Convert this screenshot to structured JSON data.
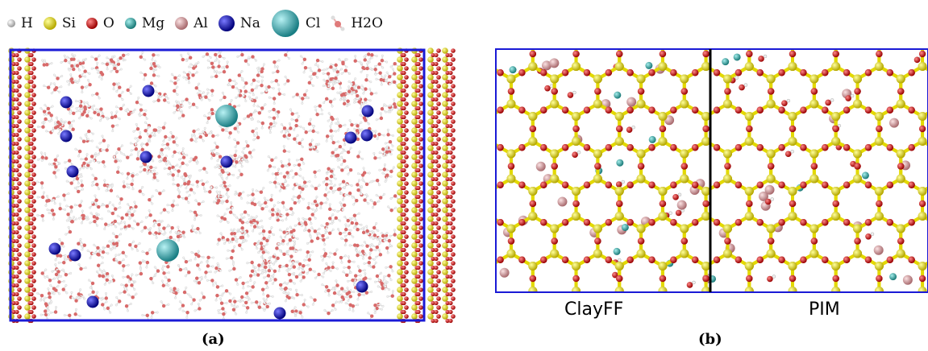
{
  "legend": [
    {
      "label": "H",
      "color": "#e8e8e8",
      "kind": "small-sphere"
    },
    {
      "label": "Si",
      "color": "#f2e400",
      "kind": "sphere"
    },
    {
      "label": "O",
      "color": "#e01515",
      "kind": "sphere"
    },
    {
      "label": "Mg",
      "color": "#33b3b0",
      "kind": "sphere"
    },
    {
      "label": "Al",
      "color": "#dca0a4",
      "kind": "sphere"
    },
    {
      "label": "Na",
      "color": "#1414c8",
      "kind": "large-sphere"
    },
    {
      "label": "Cl",
      "color": "#3ab7bd",
      "kind": "xl-sphere"
    },
    {
      "label": "H2O",
      "color": "#e07a7a",
      "kind": "water"
    }
  ],
  "panels": {
    "a": {
      "label": "(a)"
    },
    "b": {
      "label": "(b)",
      "left_method": "ClayFF",
      "right_method": "PIM"
    }
  },
  "colors": {
    "box_edge": "#1a1ad6",
    "divider": "#000000",
    "bond": "#e3d900"
  }
}
